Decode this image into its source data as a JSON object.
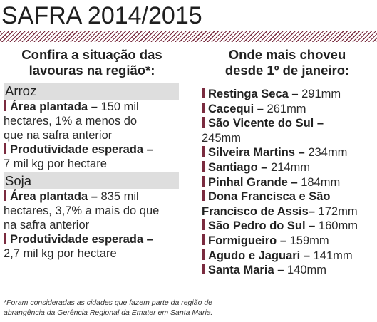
{
  "title": "SAFRA 2014/2015",
  "colors": {
    "accent": "#7a2b3f",
    "crop_bar": "#dedede"
  },
  "left": {
    "heading_line1": "Confira a situação das",
    "heading_line2": "lavouras na região*:",
    "crops": [
      {
        "name": "Arroz",
        "area_label": "Área plantada –",
        "area_line1": " 150 mil",
        "area_line2": "hectares, 1% a menos do",
        "area_line3": "que na safra anterior",
        "prod_label": "Produtividade esperada –",
        "prod_line2": "7 mil kg por hectare"
      },
      {
        "name": "Soja",
        "area_label": "Área plantada –",
        "area_line1": " 835 mil",
        "area_line2": "hectares, 3,7% a mais do que",
        "area_line3": "na safra anterior",
        "prod_label": "Produtividade esperada –",
        "prod_line2": "2,7 mil kg por hectare"
      }
    ]
  },
  "right": {
    "heading_line1": "Onde mais choveu",
    "heading_line2": "desde 1º de janeiro:",
    "items": [
      {
        "name": "Restinga Seca –",
        "value": " 291mm"
      },
      {
        "name": "Cacequi –",
        "value": " 261mm"
      },
      {
        "name": "São Vicente do Sul –",
        "value": "245mm"
      },
      {
        "name": "Silveira Martins –",
        "value": " 234mm"
      },
      {
        "name": "Santiago –",
        "value": " 214mm"
      },
      {
        "name": "Pinhal Grande –",
        "value": " 184mm"
      },
      {
        "name": "Dona Francisca e São",
        "name2": "Francisco de Assis–",
        "value": " 172mm"
      },
      {
        "name": "São Pedro do Sul –",
        "value": " 160mm"
      },
      {
        "name": "Formigueiro –",
        "value": " 159mm"
      },
      {
        "name": "Agudo e Jaguari –",
        "value": " 141mm"
      },
      {
        "name": "Santa Maria –",
        "value": " 140mm"
      }
    ]
  },
  "footnote": {
    "line1": "*Foram consideradas as cidades que fazem parte da região de",
    "line2": "abrangência da Gerência Regional da Emater em Santa Maria."
  }
}
